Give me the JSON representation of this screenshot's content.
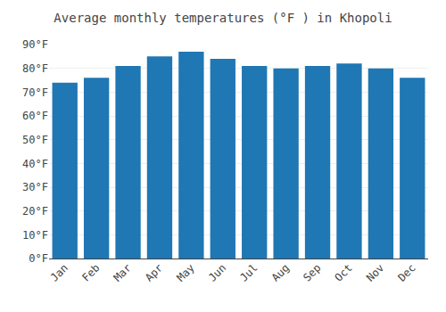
{
  "chart_data": {
    "type": "bar",
    "title": "Average monthly temperatures (°F ) in Khopoli",
    "categories": [
      "Jan",
      "Feb",
      "Mar",
      "Apr",
      "May",
      "Jun",
      "Jul",
      "Aug",
      "Sep",
      "Oct",
      "Nov",
      "Dec"
    ],
    "values": [
      74,
      76,
      81,
      85,
      87,
      84,
      81,
      80,
      81,
      82,
      80,
      76
    ],
    "ylim": [
      0,
      90
    ],
    "yticks": [
      {
        "value": 0,
        "label": "0°F"
      },
      {
        "value": 10,
        "label": "10°F"
      },
      {
        "value": 20,
        "label": "20°F"
      },
      {
        "value": 30,
        "label": "30°F"
      },
      {
        "value": 40,
        "label": "40°F"
      },
      {
        "value": 50,
        "label": "50°F"
      },
      {
        "value": 60,
        "label": "60°F"
      },
      {
        "value": 70,
        "label": "70°F"
      },
      {
        "value": 80,
        "label": "80°F"
      },
      {
        "value": 90,
        "label": "90°F"
      }
    ],
    "grid": true
  }
}
